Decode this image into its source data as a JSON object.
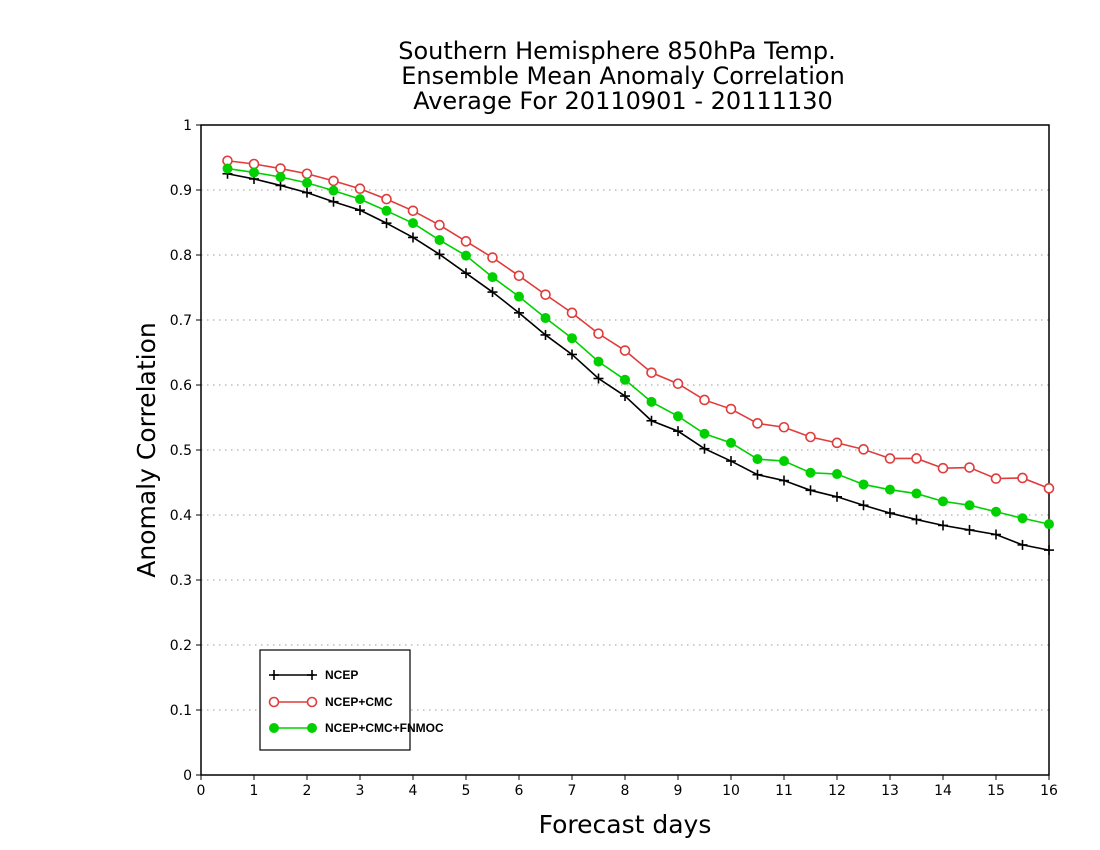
{
  "chart_data": {
    "type": "line",
    "title": [
      "Southern Hemisphere 850hPa Temp.",
      "Ensemble Mean Anomaly Correlation",
      "Average For 20110901 - 20111130"
    ],
    "xlabel": "Forecast days",
    "ylabel": "Anomaly Correlation",
    "xlim": [
      0,
      16
    ],
    "ylim": [
      0,
      1
    ],
    "xticks": [
      0,
      1,
      2,
      3,
      4,
      5,
      6,
      7,
      8,
      9,
      10,
      11,
      12,
      13,
      14,
      15,
      16
    ],
    "yticks": [
      0,
      0.1,
      0.2,
      0.3,
      0.4,
      0.5,
      0.6,
      0.7,
      0.8,
      0.9,
      1
    ],
    "ytick_labels": [
      "0",
      "0.1",
      "0.2",
      "0.3",
      "0.4",
      "0.5",
      "0.6",
      "0.7",
      "0.8",
      "0.9",
      "1"
    ],
    "xtick_labels": [
      "0",
      "1",
      "2",
      "3",
      "4",
      "5",
      "6",
      "7",
      "8",
      "9",
      "10",
      "11",
      "12",
      "13",
      "14",
      "15",
      "16"
    ],
    "grid": "horizontal dotted",
    "legend_position": "bottom-left",
    "x": [
      0.5,
      1,
      1.5,
      2,
      2.5,
      3,
      3.5,
      4,
      4.5,
      5,
      5.5,
      6,
      6.5,
      7,
      7.5,
      8,
      8.5,
      9,
      9.5,
      10,
      10.5,
      11,
      11.5,
      12,
      12.5,
      13,
      13.5,
      14,
      14.5,
      15,
      15.5,
      16
    ],
    "series": [
      {
        "name": "NCEP",
        "color": "#000000",
        "marker": "plus",
        "values": [
          0.925,
          0.917,
          0.907,
          0.896,
          0.882,
          0.869,
          0.849,
          0.827,
          0.801,
          0.772,
          0.743,
          0.711,
          0.677,
          0.647,
          0.61,
          0.583,
          0.545,
          0.529,
          0.502,
          0.483,
          0.462,
          0.453,
          0.438,
          0.428,
          0.415,
          0.403,
          0.393,
          0.384,
          0.377,
          0.37,
          0.354,
          0.346
        ]
      },
      {
        "name": "NCEP+CMC",
        "color": "#e03c3c",
        "marker": "open-circle",
        "values": [
          0.945,
          0.94,
          0.933,
          0.925,
          0.914,
          0.902,
          0.886,
          0.868,
          0.846,
          0.821,
          0.796,
          0.768,
          0.739,
          0.711,
          0.679,
          0.653,
          0.619,
          0.602,
          0.577,
          0.563,
          0.541,
          0.535,
          0.52,
          0.511,
          0.501,
          0.487,
          0.487,
          0.472,
          0.473,
          0.456,
          0.457,
          0.441
        ]
      },
      {
        "name": "NCEP+CMC+FNMOC",
        "color": "#00d000",
        "marker": "filled-circle",
        "values": [
          0.933,
          0.927,
          0.92,
          0.911,
          0.899,
          0.886,
          0.868,
          0.849,
          0.823,
          0.799,
          0.766,
          0.736,
          0.703,
          0.672,
          0.636,
          0.608,
          0.574,
          0.552,
          0.525,
          0.511,
          0.486,
          0.483,
          0.465,
          0.463,
          0.447,
          0.439,
          0.433,
          0.421,
          0.415,
          0.405,
          0.395,
          0.386
        ]
      }
    ]
  }
}
